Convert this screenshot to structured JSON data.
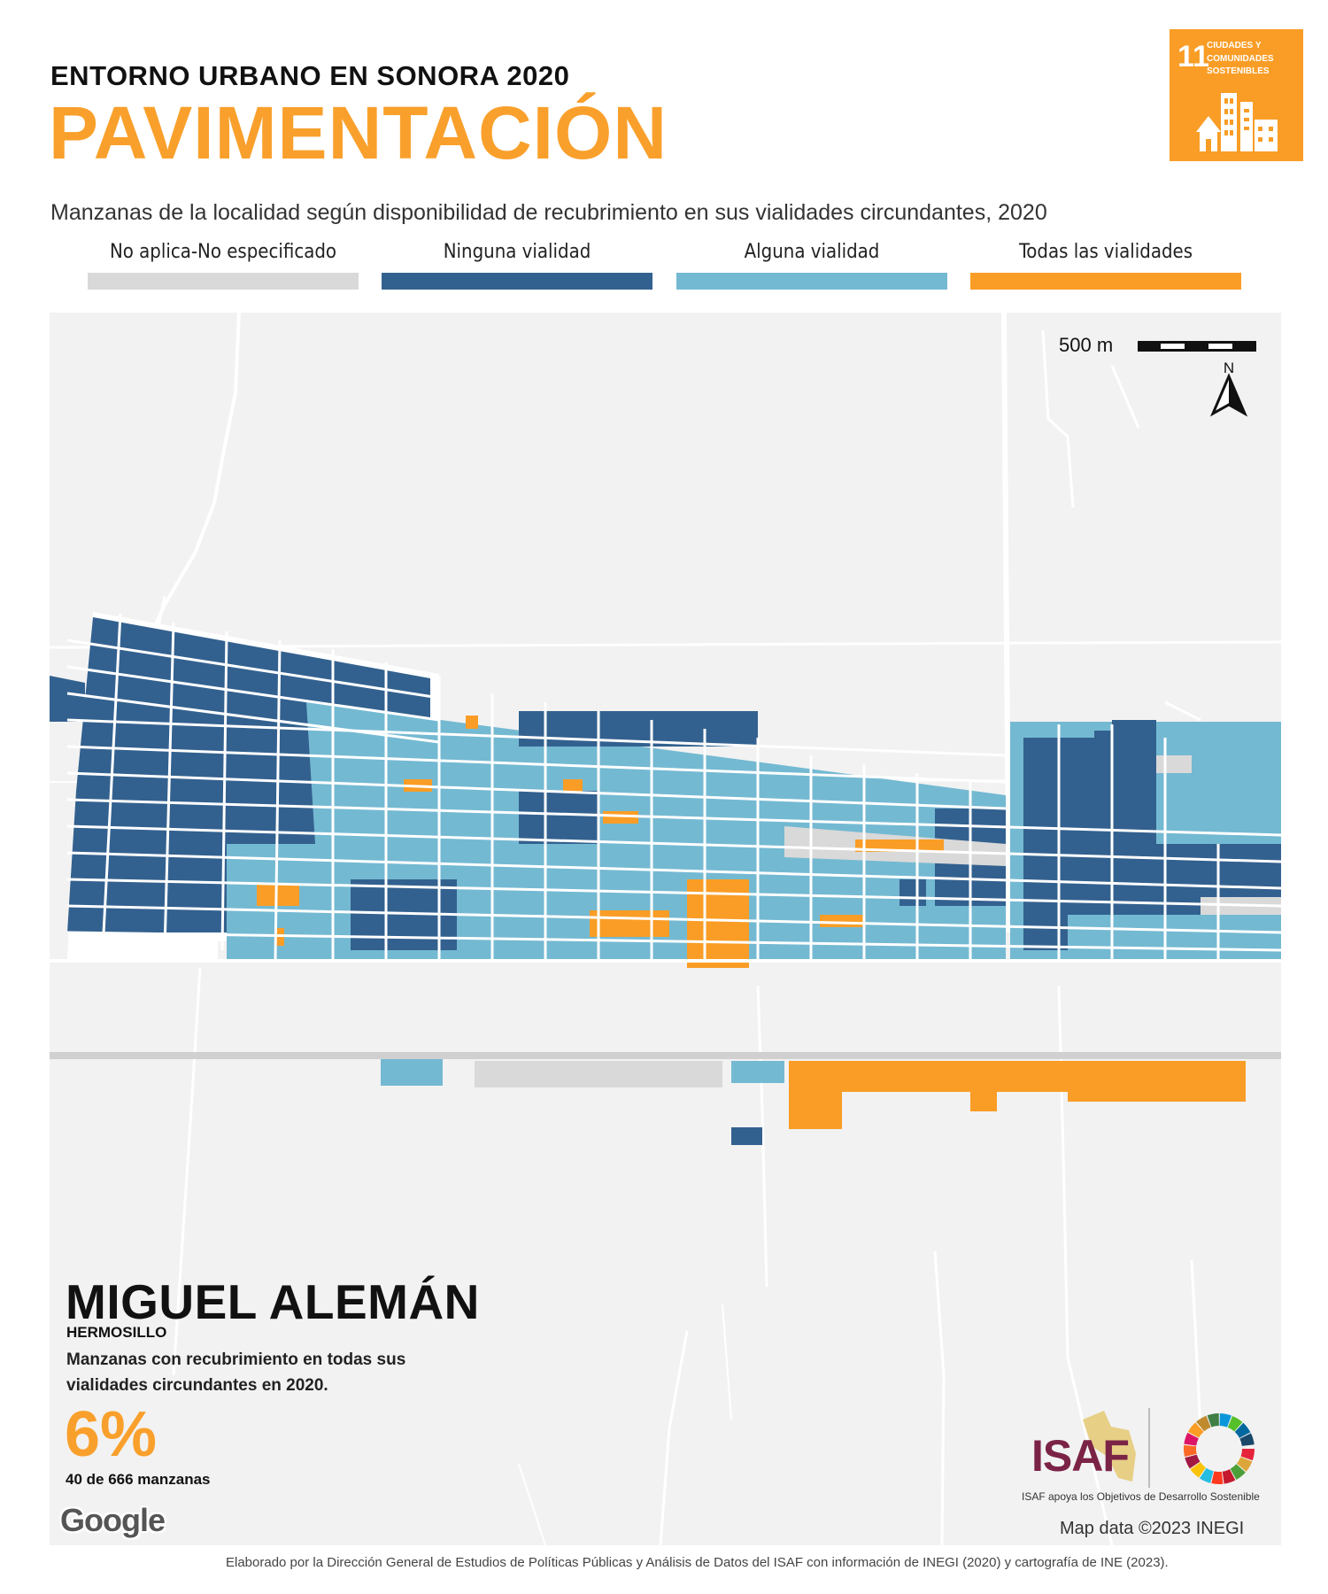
{
  "header": {
    "kicker": "ENTORNO URBANO EN SONORA 2020",
    "title": "PAVIMENTACIÓN",
    "subtitle": "Manzanas de la localidad según disponibilidad de recubrimiento en sus vialidades circundantes, 2020"
  },
  "sdg_badge": {
    "number": "11",
    "label": "CIUDADES Y COMUNIDADES SOSTENIBLES",
    "color": "#f99d26"
  },
  "legend": [
    {
      "label": "No aplica-No especificado",
      "color": "#d9d9d9"
    },
    {
      "label": "Ninguna vialidad",
      "color": "#33618f"
    },
    {
      "label": "Alguna vialidad",
      "color": "#74b9d2"
    },
    {
      "label": "Todas las vialidades",
      "color": "#f99d26"
    }
  ],
  "map": {
    "scale_label": "500 m",
    "north_label": "N",
    "locality": "MIGUEL ALEMÁN",
    "municipality": "HERMOSILLO",
    "stat_description": "Manzanas con recubrimiento en todas sus vialidades circundantes en 2020.",
    "stat_percent": "6%",
    "stat_count": "40 de 666 manzanas",
    "google_label": "Google",
    "map_data": "Map data ©2023 INEGI",
    "background_color": "#f2f2f2"
  },
  "logos": {
    "isaf_name": "ISAF",
    "isaf_caption": "ISAF apoya los Objetivos de Desarrollo Sostenible"
  },
  "footer": "Elaborado por la Dirección General de Estudios de Políticas Públicas y Análisis de Datos del ISAF con información de INEGI (2020) y cartografía de INE (2023)."
}
